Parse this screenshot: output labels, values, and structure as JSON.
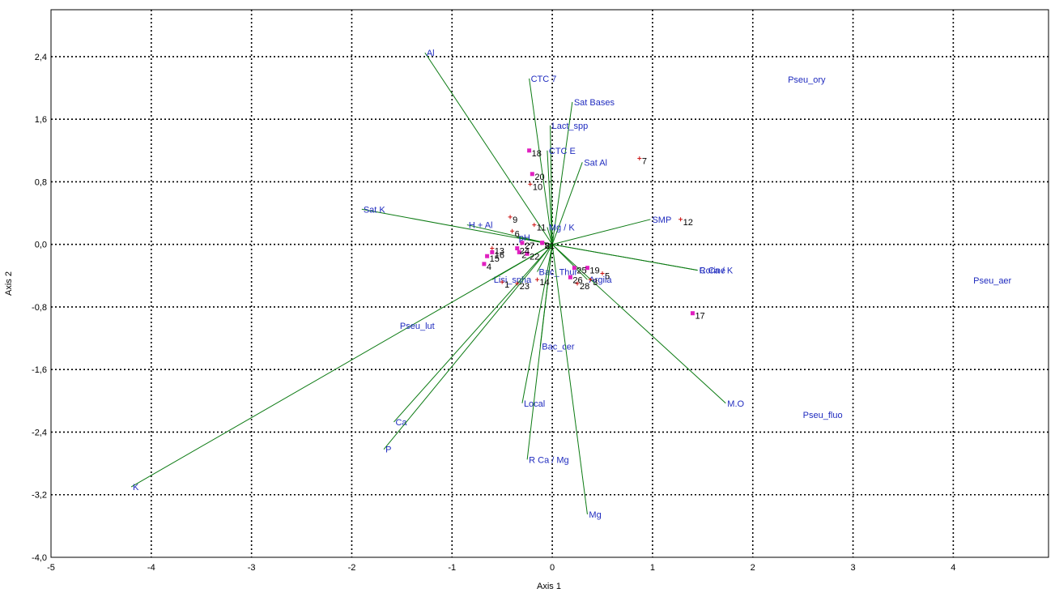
{
  "chart_data": {
    "type": "scatter",
    "xlabel": "Axis 1",
    "ylabel": "Axis 2",
    "xlim": [
      -5,
      4.95
    ],
    "ylim": [
      -4.0,
      3.0
    ],
    "x_ticks": [
      "-5",
      "-4",
      "-3",
      "-2",
      "-1",
      "0",
      "1",
      "2",
      "3",
      "4"
    ],
    "y_ticks": [
      "2,4",
      "1,6",
      "0,8",
      "0,0",
      "-0,8",
      "-1,6",
      "-2,4",
      "-3,2",
      "-4,0"
    ],
    "grid": true,
    "colors": {
      "vector": "#0b7a12",
      "vector_label": "#1f2bbf",
      "square_point": "#e020c0",
      "cross_point": "#cc1111",
      "grid": "#000000"
    },
    "vectors": [
      {
        "label": "Al",
        "x": -1.27,
        "y": 2.45
      },
      {
        "label": "CTC 7",
        "x": -0.23,
        "y": 2.12
      },
      {
        "label": "Sat  Bases",
        "x": 0.2,
        "y": 1.82
      },
      {
        "label": "Lact_spp",
        "x": -0.02,
        "y": 1.52
      },
      {
        "label": "CTC E",
        "x": -0.05,
        "y": 1.2
      },
      {
        "label": "Sat  Al",
        "x": 0.3,
        "y": 1.05
      },
      {
        "label": "Sat K",
        "x": -1.9,
        "y": 0.45
      },
      {
        "label": "H + Al",
        "x": -0.85,
        "y": 0.25
      },
      {
        "label": "Mg / K",
        "x": -0.05,
        "y": 0.22
      },
      {
        "label": "pH",
        "x": -0.35,
        "y": 0.09
      },
      {
        "label": "SMP",
        "x": 0.98,
        "y": 0.32
      },
      {
        "label": "Corine",
        "x": 1.45,
        "y": -0.33
      },
      {
        "label": "R Ca / K",
        "x": 1.45,
        "y": -0.33
      },
      {
        "label": "Bac_Thur",
        "x": -0.15,
        "y": -0.35
      },
      {
        "label": "Argila",
        "x": 0.35,
        "y": -0.45
      },
      {
        "label": "Lisi_spha",
        "x": -0.6,
        "y": -0.45
      },
      {
        "label": "Bac_cer",
        "x": -0.12,
        "y": -1.3
      },
      {
        "label": "Local",
        "x": -0.3,
        "y": -2.03
      },
      {
        "label": "M.O",
        "x": 1.73,
        "y": -2.03
      },
      {
        "label": "Ca",
        "x": -1.58,
        "y": -2.27
      },
      {
        "label": "P",
        "x": -1.68,
        "y": -2.62
      },
      {
        "label": "R Ca / Mg",
        "x": -0.25,
        "y": -2.75
      },
      {
        "label": "Mg",
        "x": 0.35,
        "y": -3.45
      },
      {
        "label": "K",
        "x": -4.2,
        "y": -3.1
      }
    ],
    "species": [
      {
        "label": "Pseu_ory",
        "x": 2.35,
        "y": 2.07
      },
      {
        "label": "Pseu_aer",
        "x": 4.2,
        "y": -0.5
      },
      {
        "label": "Pseu_lut",
        "x": -1.52,
        "y": -1.08
      },
      {
        "label": "Pseu_fluo",
        "x": 2.5,
        "y": -2.22
      }
    ],
    "sites": [
      {
        "label": "1",
        "x": -0.5,
        "y": -0.48,
        "marker": "cross"
      },
      {
        "label": "2",
        "x": -0.33,
        "y": -0.1,
        "marker": "square"
      },
      {
        "label": "3",
        "x": 0.38,
        "y": -0.45,
        "marker": "cross"
      },
      {
        "label": "4",
        "x": -0.68,
        "y": -0.25,
        "marker": "square"
      },
      {
        "label": "5",
        "x": 0.5,
        "y": -0.37,
        "marker": "cross"
      },
      {
        "label": "6",
        "x": -0.4,
        "y": 0.17,
        "marker": "cross"
      },
      {
        "label": "7",
        "x": 0.87,
        "y": 1.1,
        "marker": "cross"
      },
      {
        "label": "8",
        "x": -0.1,
        "y": 0.02,
        "marker": "square"
      },
      {
        "label": "9",
        "x": -0.42,
        "y": 0.35,
        "marker": "cross"
      },
      {
        "label": "10",
        "x": -0.22,
        "y": 0.77,
        "marker": "cross"
      },
      {
        "label": "11",
        "x": -0.18,
        "y": 0.25,
        "marker": "cross"
      },
      {
        "label": "12",
        "x": 1.28,
        "y": 0.32,
        "marker": "cross"
      },
      {
        "label": "13",
        "x": -0.6,
        "y": -0.05,
        "marker": "cross"
      },
      {
        "label": "14",
        "x": -0.15,
        "y": -0.45,
        "marker": "cross"
      },
      {
        "label": "15",
        "x": -0.65,
        "y": -0.15,
        "marker": "square"
      },
      {
        "label": "16",
        "x": -0.6,
        "y": -0.1,
        "marker": "square"
      },
      {
        "label": "17",
        "x": 1.4,
        "y": -0.88,
        "marker": "square"
      },
      {
        "label": "18",
        "x": -0.23,
        "y": 1.2,
        "marker": "square"
      },
      {
        "label": "19",
        "x": 0.35,
        "y": -0.3,
        "marker": "square"
      },
      {
        "label": "20",
        "x": -0.2,
        "y": 0.9,
        "marker": "square"
      },
      {
        "label": "21",
        "x": -0.1,
        "y": 0.02,
        "marker": "square"
      },
      {
        "label": "22",
        "x": -0.25,
        "y": -0.12,
        "marker": "square"
      },
      {
        "label": "23",
        "x": -0.35,
        "y": -0.5,
        "marker": "cross"
      },
      {
        "label": "24",
        "x": -0.35,
        "y": -0.05,
        "marker": "square"
      },
      {
        "label": "25",
        "x": 0.22,
        "y": -0.3,
        "marker": "square"
      },
      {
        "label": "26",
        "x": 0.18,
        "y": -0.42,
        "marker": "square"
      },
      {
        "label": "27",
        "x": -0.3,
        "y": 0.02,
        "marker": "square"
      },
      {
        "label": "28",
        "x": 0.25,
        "y": -0.5,
        "marker": "cross"
      }
    ]
  }
}
